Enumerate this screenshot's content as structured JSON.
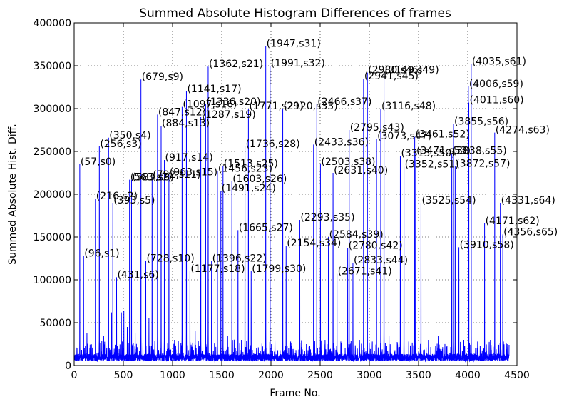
{
  "chart_data": {
    "type": "line",
    "title": "Summed Absolute Histogram Differences of frames",
    "xlabel": "Frame No.",
    "ylabel": "Summed Absolute Hist. Diff.",
    "xlim": [
      0,
      4500
    ],
    "ylim": [
      0,
      400000
    ],
    "xticks": [
      0,
      500,
      1000,
      1500,
      2000,
      2500,
      3000,
      3500,
      4000,
      4500
    ],
    "yticks": [
      0,
      50000,
      100000,
      150000,
      200000,
      250000,
      300000,
      350000,
      400000
    ],
    "grid": true,
    "line_color": "#0000ff",
    "baseline_noise": {
      "min": 5000,
      "max": 22000
    },
    "peaks": [
      {
        "x": 57,
        "y": 235000,
        "label": "(57,s0)"
      },
      {
        "x": 96,
        "y": 128000,
        "label": "(96,s1)"
      },
      {
        "x": 216,
        "y": 195000,
        "label": "(216,s2)"
      },
      {
        "x": 256,
        "y": 256000,
        "label": "(256,s3)"
      },
      {
        "x": 350,
        "y": 266000,
        "label": "(350,s4)"
      },
      {
        "x": 393,
        "y": 190000,
        "label": "(393,s5)"
      },
      {
        "x": 431,
        "y": 103000,
        "label": "(431,s6)"
      },
      {
        "x": 563,
        "y": 217000,
        "label": "(563,s7)"
      },
      {
        "x": 583,
        "y": 217000,
        "label": "(583,s8)"
      },
      {
        "x": 679,
        "y": 334000,
        "label": "(679,s9)"
      },
      {
        "x": 728,
        "y": 122000,
        "label": "(728,s10)"
      },
      {
        "x": 792,
        "y": 220000,
        "label": "(792,s11)"
      },
      {
        "x": 847,
        "y": 293000,
        "label": "(847,s12)"
      },
      {
        "x": 884,
        "y": 280000,
        "label": "(884,s13)"
      },
      {
        "x": 917,
        "y": 240000,
        "label": "(917,s14)"
      },
      {
        "x": 963,
        "y": 223000,
        "label": "(963,s15)"
      },
      {
        "x": 1097,
        "y": 302000,
        "label": "(1097,s16)"
      },
      {
        "x": 1141,
        "y": 320000,
        "label": "(1141,s17)"
      },
      {
        "x": 1177,
        "y": 110000,
        "label": "(1177,s18)"
      },
      {
        "x": 1287,
        "y": 290000,
        "label": "(1287,s19)"
      },
      {
        "x": 1336,
        "y": 305000,
        "label": "(1336,s20)"
      },
      {
        "x": 1362,
        "y": 349000,
        "label": "(1362,s21)"
      },
      {
        "x": 1396,
        "y": 122000,
        "label": "(1396,s22)"
      },
      {
        "x": 1456,
        "y": 227000,
        "label": "(1456,s23)"
      },
      {
        "x": 1491,
        "y": 204000,
        "label": "(1491,s24)"
      },
      {
        "x": 1513,
        "y": 233000,
        "label": "(1513,s25)"
      },
      {
        "x": 1603,
        "y": 215000,
        "label": "(1603,s26)"
      },
      {
        "x": 1665,
        "y": 158000,
        "label": "(1665,s27)"
      },
      {
        "x": 1736,
        "y": 256000,
        "label": "(1736,s28)"
      },
      {
        "x": 1771,
        "y": 300000,
        "label": "(1771,s29)"
      },
      {
        "x": 1799,
        "y": 110000,
        "label": "(1799,s30)"
      },
      {
        "x": 1947,
        "y": 373000,
        "label": "(1947,s31)"
      },
      {
        "x": 1991,
        "y": 350000,
        "label": "(1991,s32)"
      },
      {
        "x": 2120,
        "y": 300000,
        "label": "(2120,s33)"
      },
      {
        "x": 2154,
        "y": 140000,
        "label": "(2154,s34)"
      },
      {
        "x": 2293,
        "y": 170000,
        "label": "(2293,s35)"
      },
      {
        "x": 2433,
        "y": 258000,
        "label": "(2433,s36)"
      },
      {
        "x": 2466,
        "y": 305000,
        "label": "(2466,s37)"
      },
      {
        "x": 2503,
        "y": 235000,
        "label": "(2503,s38)"
      },
      {
        "x": 2584,
        "y": 150000,
        "label": "(2584,s39)"
      },
      {
        "x": 2631,
        "y": 225000,
        "label": "(2631,s40)"
      },
      {
        "x": 2671,
        "y": 107000,
        "label": "(2671,s41)"
      },
      {
        "x": 2780,
        "y": 137000,
        "label": "(2780,s42)"
      },
      {
        "x": 2795,
        "y": 275000,
        "label": "(2795,s43)"
      },
      {
        "x": 2833,
        "y": 120000,
        "label": "(2833,s44)"
      },
      {
        "x": 2941,
        "y": 335000,
        "label": "(2941,s45)"
      },
      {
        "x": 2980,
        "y": 342000,
        "label": "(2980,s46)"
      },
      {
        "x": 3073,
        "y": 265000,
        "label": "(3073,s47)"
      },
      {
        "x": 3116,
        "y": 300000,
        "label": "(3116,s48)"
      },
      {
        "x": 3149,
        "y": 342000,
        "label": "(3149,s49)"
      },
      {
        "x": 3315,
        "y": 245000,
        "label": "(3315,s50)"
      },
      {
        "x": 3352,
        "y": 232000,
        "label": "(3352,s51)"
      },
      {
        "x": 3461,
        "y": 267000,
        "label": "(3461,s52)"
      },
      {
        "x": 3471,
        "y": 248000,
        "label": "(3471,s53)"
      },
      {
        "x": 3525,
        "y": 190000,
        "label": "(3525,s54)"
      },
      {
        "x": 3838,
        "y": 248000,
        "label": "(3838,s55)"
      },
      {
        "x": 3855,
        "y": 282000,
        "label": "(3855,s56)"
      },
      {
        "x": 3872,
        "y": 233000,
        "label": "(3872,s57)"
      },
      {
        "x": 3910,
        "y": 138000,
        "label": "(3910,s58)"
      },
      {
        "x": 4006,
        "y": 326000,
        "label": "(4006,s59)"
      },
      {
        "x": 4011,
        "y": 307000,
        "label": "(4011,s60)"
      },
      {
        "x": 4035,
        "y": 352000,
        "label": "(4035,s61)"
      },
      {
        "x": 4171,
        "y": 166000,
        "label": "(4171,s62)"
      },
      {
        "x": 4274,
        "y": 272000,
        "label": "(4274,s63)"
      },
      {
        "x": 4331,
        "y": 190000,
        "label": "(4331,s64)"
      },
      {
        "x": 4356,
        "y": 153000,
        "label": "(4356,s65)"
      }
    ],
    "unlabeled_spikes": [
      {
        "x": 8,
        "y": 10000
      },
      {
        "x": 130,
        "y": 38000
      },
      {
        "x": 300,
        "y": 35000
      },
      {
        "x": 380,
        "y": 62000
      },
      {
        "x": 430,
        "y": 55000
      },
      {
        "x": 480,
        "y": 62000
      },
      {
        "x": 505,
        "y": 64000
      },
      {
        "x": 540,
        "y": 45000
      },
      {
        "x": 620,
        "y": 38000
      },
      {
        "x": 760,
        "y": 55000
      },
      {
        "x": 1020,
        "y": 30000
      },
      {
        "x": 1230,
        "y": 40000
      },
      {
        "x": 1560,
        "y": 35000
      },
      {
        "x": 1700,
        "y": 30000
      },
      {
        "x": 2040,
        "y": 30000
      },
      {
        "x": 2200,
        "y": 28000
      },
      {
        "x": 2360,
        "y": 25000
      },
      {
        "x": 2550,
        "y": 30000
      },
      {
        "x": 2710,
        "y": 28000
      },
      {
        "x": 2900,
        "y": 30000
      },
      {
        "x": 3030,
        "y": 28000
      },
      {
        "x": 3200,
        "y": 35000
      },
      {
        "x": 3400,
        "y": 28000
      },
      {
        "x": 3600,
        "y": 30000
      },
      {
        "x": 3700,
        "y": 35000
      },
      {
        "x": 3960,
        "y": 30000
      },
      {
        "x": 4100,
        "y": 28000
      },
      {
        "x": 4230,
        "y": 30000
      },
      {
        "x": 4400,
        "y": 25000
      }
    ]
  }
}
